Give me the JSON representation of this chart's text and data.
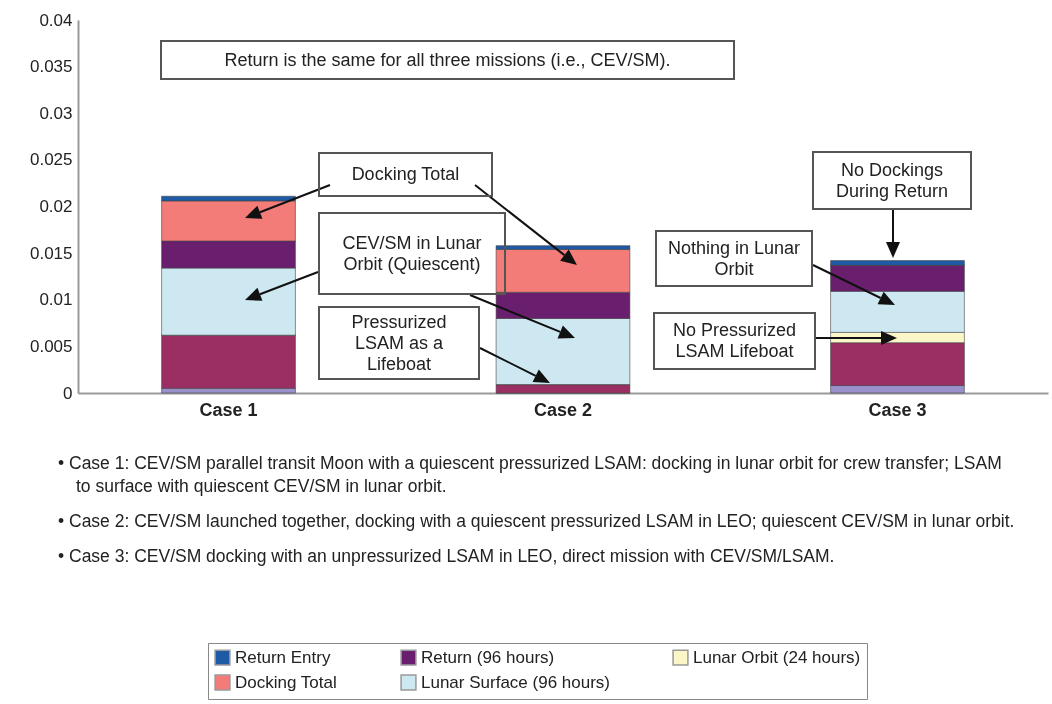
{
  "chart_data": {
    "type": "bar",
    "stacked": true,
    "categories": [
      "Case 1",
      "Case 2",
      "Case 3"
    ],
    "series": [
      {
        "color": "#9a90cc",
        "values": [
          0.0005,
          0,
          0.0008
        ]
      },
      {
        "color": "#9b2f63",
        "values": [
          0.0057,
          0.0009,
          0.0046
        ]
      },
      {
        "name": "Lunar Orbit (24 hours)",
        "color": "#fbf6c8",
        "values": [
          0,
          0,
          0.0011
        ]
      },
      {
        "name": "Lunar Surface (96 hours)",
        "color": "#cde8f0",
        "values": [
          0.0072,
          0.0071,
          0.0044
        ]
      },
      {
        "name": "Return (96 hours)",
        "color": "#6a1f6e",
        "values": [
          0.0029,
          0.0028,
          0.0028
        ]
      },
      {
        "name": "Docking Total",
        "color": "#f37b78",
        "values": [
          0.0043,
          0.0046,
          0
        ]
      },
      {
        "name": "Return Entry",
        "color": "#1f5aa6",
        "values": [
          0.0005,
          0.0004,
          0.0005
        ]
      }
    ],
    "ylim": [
      0,
      0.04
    ],
    "yticks": [
      0,
      0.005,
      0.01,
      0.015,
      0.02,
      0.025,
      0.03,
      0.035,
      0.04
    ],
    "grid": false,
    "legend": "bottom",
    "annotations": [
      "Return is the same for all three missions (i.e., CEV/SM).",
      "Docking Total",
      "CEV/SM in Lunar Orbit (Quiescent)",
      "Pressurized LSAM as a Lifeboat",
      "No Dockings During Return",
      "Nothing in Lunar Orbit",
      "No Pressurized LSAM Lifeboat",
      "• Case 1: CEV/SM parallel transit Moon with a quiescent pressurized LSAM: docking in lunar orbit for crew transfer; LSAM to surface with quiescent CEV/SM in lunar orbit.",
      "• Case 2: CEV/SM launched together, docking with a quiescent pressurized LSAM in LEO; quiescent CEV/SM in lunar orbit.",
      "• Case 3: CEV/SM docking with an unpressurized LSAM in LEO, direct mission with CEV/SM/LSAM."
    ]
  }
}
